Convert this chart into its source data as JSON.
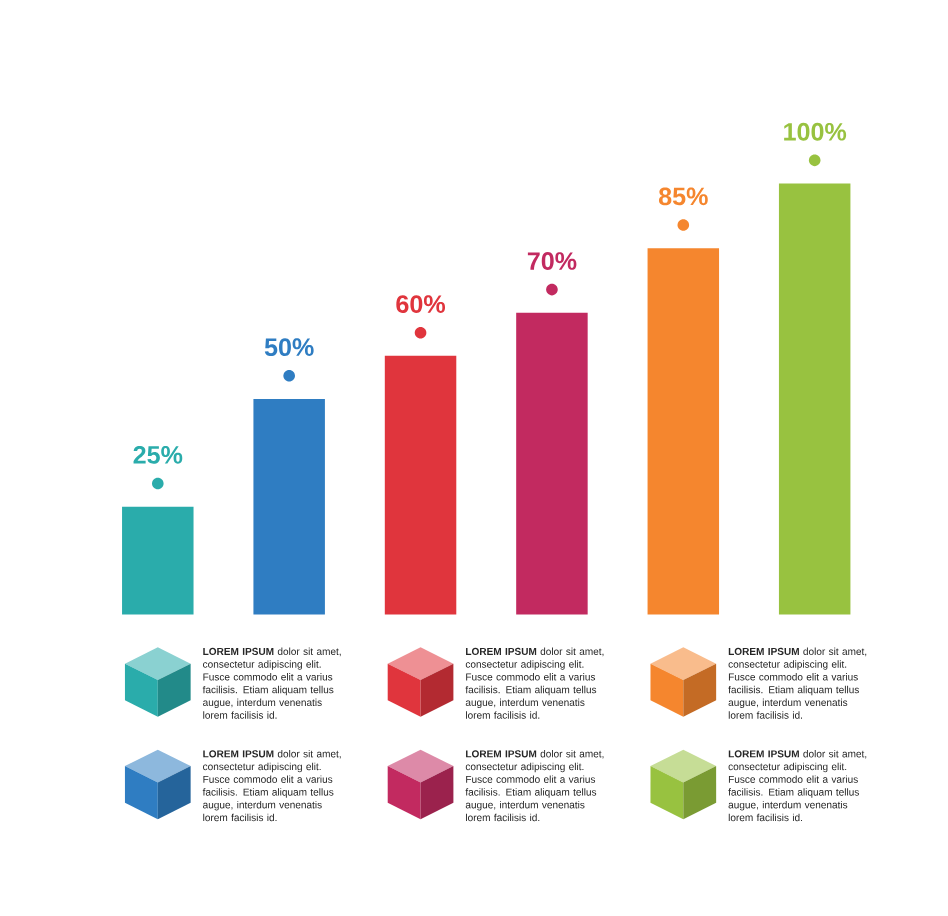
{
  "chart_data": {
    "type": "bar",
    "categories": [
      null,
      null,
      null,
      null,
      null,
      null
    ],
    "values": [
      25,
      50,
      60,
      70,
      85,
      100
    ],
    "colors": [
      "#2aacab",
      "#2f7dc2",
      "#e0353d",
      "#c22a60",
      "#f5862e",
      "#98c240"
    ],
    "value_labels": [
      "25%",
      "50%",
      "60%",
      "70%",
      "85%",
      "100%"
    ],
    "annotations": [
      "**LOREM IPSUM** dolor sit amet, consectetur adipiscing elit. Fusce commodo elit a varius facilisis. Etiam aliquam tellus augue, interdum venenatis lorem facilisis id.",
      "**LOREM IPSUM** dolor sit amet, consectetur adipiscing elit. Fusce commodo elit a varius facilisis. Etiam aliquam tellus augue, interdum venenatis lorem facilisis id.",
      "**LOREM IPSUM** dolor sit amet, consectetur adipiscing elit. Fusce commodo elit a varius facilisis. Etiam aliquam tellus augue, interdum venenatis lorem facilisis id.",
      "**LOREM IPSUM** dolor sit amet, consectetur adipiscing elit. Fusce commodo elit a varius facilisis. Etiam aliquam tellus augue, interdum venenatis lorem facilisis id.",
      "**LOREM IPSUM** dolor sit amet, consectetur adipiscing elit. Fusce commodo elit a varius facilisis. Etiam aliquam tellus augue, interdum venenatis lorem facilisis id.",
      "**LOREM IPSUM** dolor sit amet, consectetur adipiscing elit. Fusce commodo elit a varius facilisis. Etiam aliquam tellus augue, interdum venenatis lorem facilisis id."
    ]
  }
}
